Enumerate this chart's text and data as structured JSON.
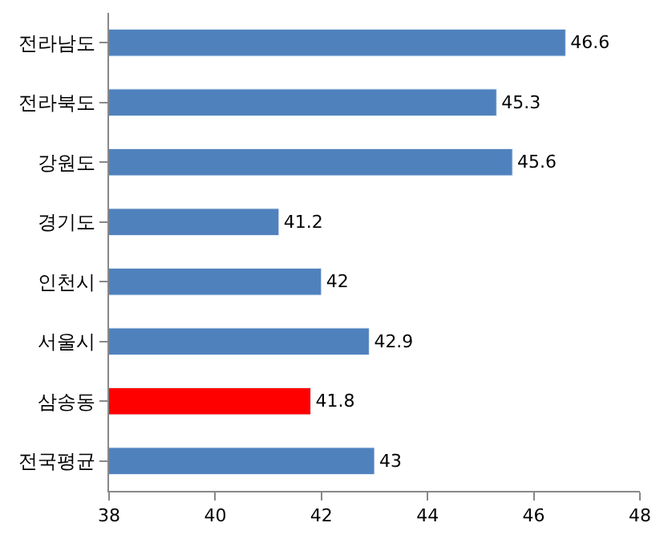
{
  "chart_data": {
    "type": "bar",
    "orientation": "horizontal",
    "categories": [
      "전라남도",
      "전라북도",
      "강원도",
      "경기도",
      "인천시",
      "서울시",
      "삼송동",
      "전국평균"
    ],
    "values": [
      46.6,
      45.3,
      45.6,
      41.2,
      42,
      42.9,
      41.8,
      43
    ],
    "colors": [
      "#4f81bd",
      "#4f81bd",
      "#4f81bd",
      "#4f81bd",
      "#4f81bd",
      "#4f81bd",
      "#ff0000",
      "#4f81bd"
    ],
    "xlim": [
      38,
      48
    ],
    "xticks": [
      38,
      40,
      42,
      44,
      46,
      48
    ],
    "grid": false,
    "legend": false,
    "data_labels": true
  }
}
